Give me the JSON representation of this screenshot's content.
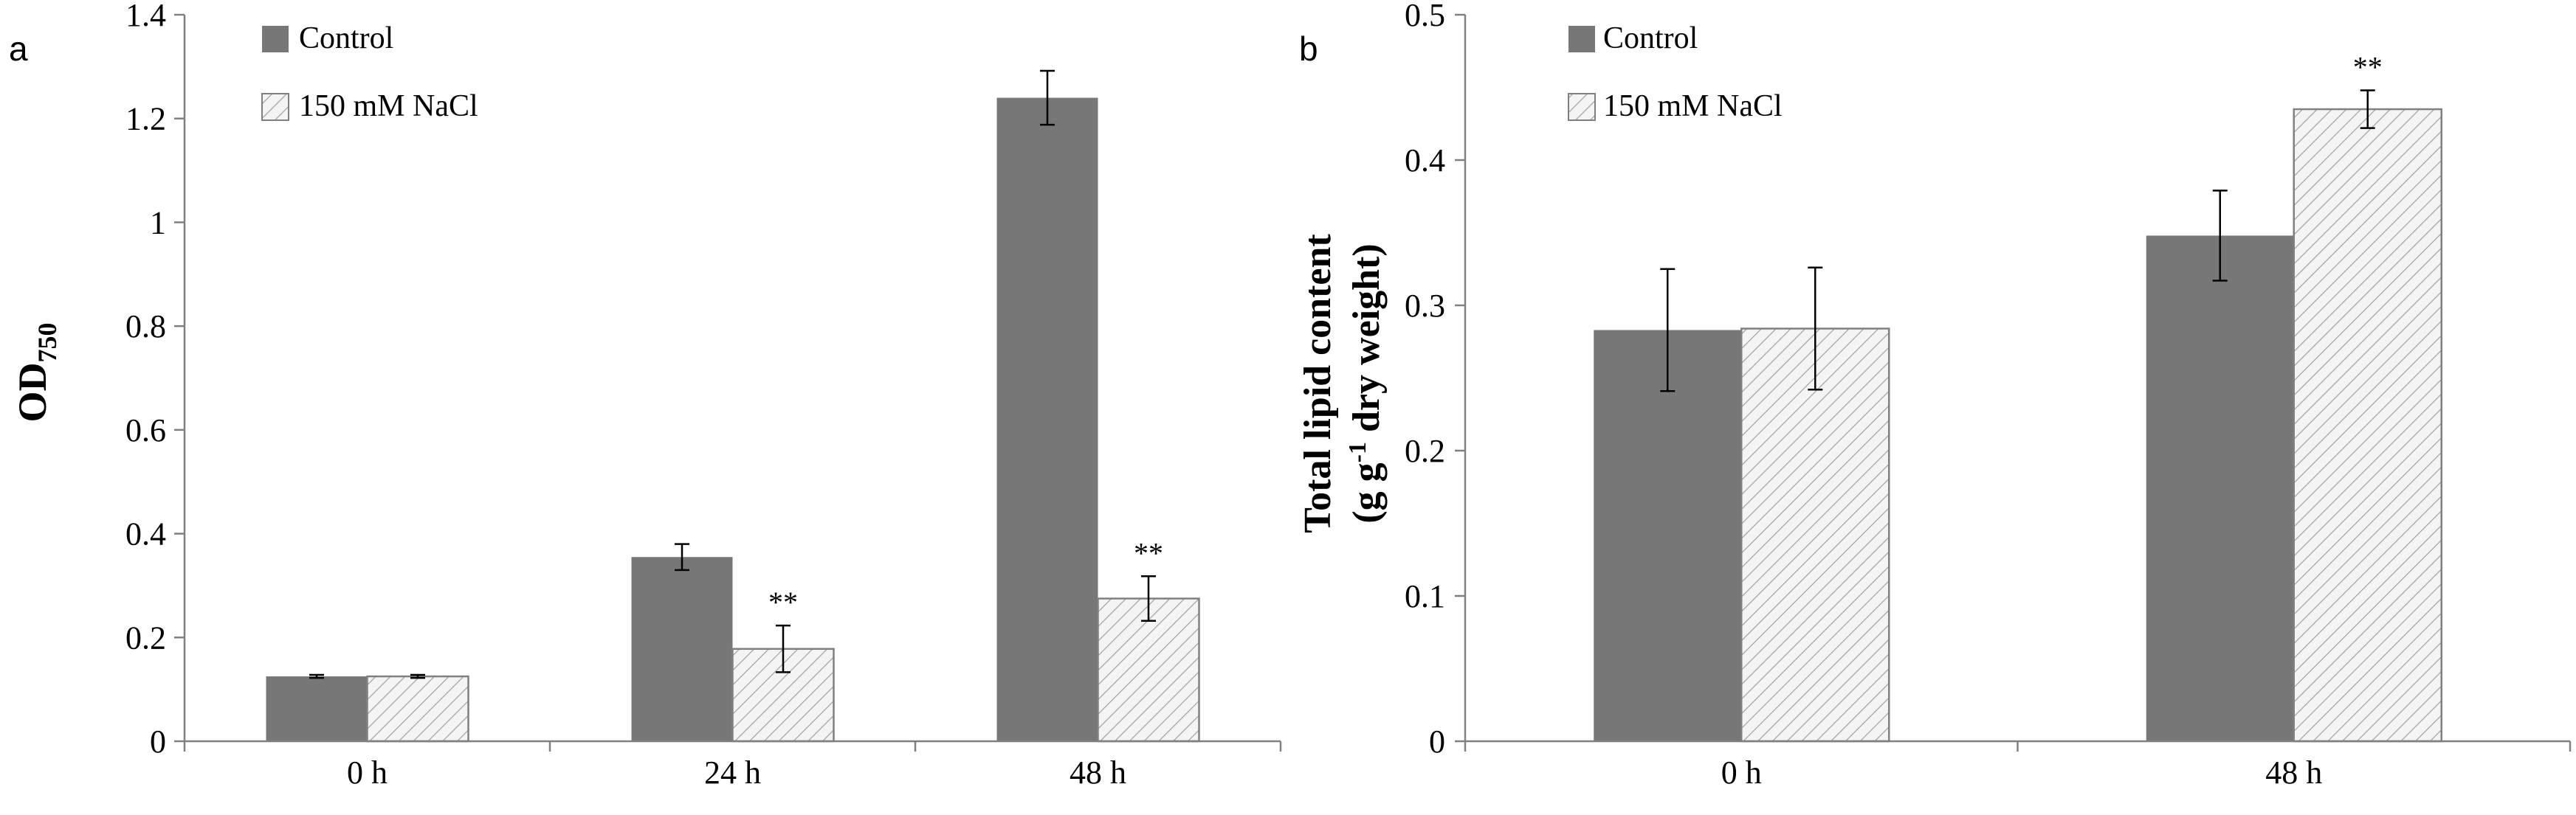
{
  "colors": {
    "control": "#777777",
    "nacl_fill": "#f4f4f4",
    "nacl_hatch": "#a0a0a0",
    "axis": "#808080",
    "text": "#000000"
  },
  "chart_data": [
    {
      "type": "bar",
      "panel_label": "a",
      "categories": [
        "0 h",
        "24 h",
        "48 h"
      ],
      "series": [
        {
          "name": "Control",
          "values": [
            0.125,
            0.355,
            1.24
          ],
          "errors": [
            0.003,
            0.025,
            0.052
          ]
        },
        {
          "name": "150 mM NaCl",
          "values": [
            0.125,
            0.178,
            0.275
          ],
          "errors": [
            0.003,
            0.045,
            0.043
          ]
        }
      ],
      "significance": [
        {
          "category": "24 h",
          "series": "150 mM NaCl",
          "text": "**"
        },
        {
          "category": "48 h",
          "series": "150 mM NaCl",
          "text": "**"
        }
      ],
      "ylabel": "OD",
      "ylabel_subscript": "750",
      "xlabel": "",
      "ylim": [
        0,
        1.4
      ],
      "yticks": [
        0,
        0.2,
        0.4,
        0.6,
        0.8,
        1,
        1.2,
        1.4
      ],
      "ytick_labels": [
        "0",
        "0.2",
        "0.4",
        "0.6",
        "0.8",
        "1",
        "1.2",
        "1.4"
      ],
      "legend": "top-left"
    },
    {
      "type": "bar",
      "panel_label": "b",
      "categories": [
        "0 h",
        "48 h"
      ],
      "series": [
        {
          "name": "Control",
          "values": [
            0.283,
            0.348
          ],
          "errors": [
            0.042,
            0.031
          ]
        },
        {
          "name": "150 mM NaCl",
          "values": [
            0.284,
            0.435
          ],
          "errors": [
            0.042,
            0.013
          ]
        }
      ],
      "significance": [
        {
          "category": "48 h",
          "series": "150 mM NaCl",
          "text": "**"
        }
      ],
      "ylabel_line1": "Total lipid content",
      "ylabel_line2_pre": "(g g",
      "ylabel_line2_sup": "-1",
      "ylabel_line2_post": " dry weight)",
      "xlabel": "",
      "ylim": [
        0,
        0.5
      ],
      "yticks": [
        0,
        0.1,
        0.2,
        0.3,
        0.4,
        0.5
      ],
      "ytick_labels": [
        "0",
        "0.1",
        "0.2",
        "0.3",
        "0.4",
        "0.5"
      ],
      "legend": "top-left"
    }
  ]
}
